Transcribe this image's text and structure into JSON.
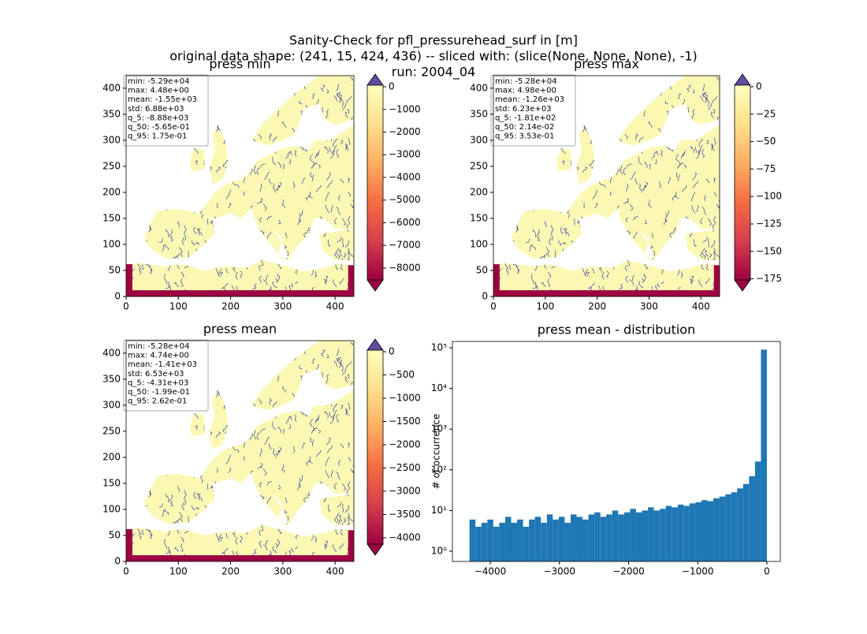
{
  "figure": {
    "title_lines": [
      "Sanity-Check for pfl_pressurehead_surf in [m]",
      "original data shape: (241, 15, 424, 436) -- sliced with: (slice(None, None, None), -1)",
      "run: 2004_04"
    ]
  },
  "chart_data": [
    {
      "type": "heatmap",
      "title": "press min",
      "xlim": [
        0,
        436
      ],
      "ylim": [
        0,
        424
      ],
      "xticks": [
        0,
        100,
        200,
        300,
        400
      ],
      "yticks": [
        0,
        50,
        100,
        150,
        200,
        250,
        300,
        350,
        400
      ],
      "stats": [
        "min: -5.29e+04",
        "max: 4.48e+00",
        "mean: -1.55e+03",
        "std: 6.88e+03",
        "q_5: -8.88e+03",
        "q_50: -5.65e-01",
        "q_95: 1.75e-01"
      ],
      "colorbar": {
        "cmap": "Spectral",
        "clim": [
          -8524,
          70
        ],
        "ticks": [
          0,
          {
            "value": -1000,
            "label": "−1000"
          },
          {
            "value": -2000,
            "label": "−2000"
          },
          {
            "value": -3000,
            "label": "−3000"
          },
          {
            "value": -4000,
            "label": "−4000"
          },
          {
            "value": -5000,
            "label": "−5000"
          },
          {
            "value": -6000,
            "label": "−6000"
          },
          {
            "value": -7000,
            "label": "−7000"
          },
          {
            "value": -8000,
            "label": "−8000"
          }
        ]
      }
    },
    {
      "type": "heatmap",
      "title": "press max",
      "xlim": [
        0,
        436
      ],
      "ylim": [
        0,
        424
      ],
      "xticks": [
        0,
        100,
        200,
        300,
        400
      ],
      "yticks": [
        0,
        50,
        100,
        150,
        200,
        250,
        300,
        350,
        400
      ],
      "stats": [
        "min: -5.28e+04",
        "max: 4.98e+00",
        "mean: -1.26e+03",
        "std: 6.23e+03",
        "q_5: -1.81e+02",
        "q_50: 2.14e-02",
        "q_95: 3.53e-01"
      ],
      "colorbar": {
        "cmap": "Spectral",
        "clim": [
          -176,
          1.4
        ],
        "ticks": [
          0,
          {
            "value": -25,
            "label": "−25"
          },
          {
            "value": -50,
            "label": "−50"
          },
          {
            "value": -75,
            "label": "−75"
          },
          {
            "value": -100,
            "label": "−100"
          },
          {
            "value": -125,
            "label": "−125"
          },
          {
            "value": -150,
            "label": "−150"
          },
          {
            "value": -175,
            "label": "−175"
          }
        ]
      }
    },
    {
      "type": "heatmap",
      "title": "press mean",
      "xlim": [
        0,
        436
      ],
      "ylim": [
        0,
        424
      ],
      "xticks": [
        0,
        100,
        200,
        300,
        400
      ],
      "yticks": [
        0,
        50,
        100,
        150,
        200,
        250,
        300,
        350,
        400
      ],
      "stats": [
        "min: -5.28e+04",
        "max: 4.74e+00",
        "mean: -1.41e+03",
        "std: 6.53e+03",
        "q_5: -4.31e+03",
        "q_50: -1.99e-01",
        "q_95: 2.62e-01"
      ],
      "colorbar": {
        "cmap": "Spectral",
        "clim": [
          -4136,
          34
        ],
        "ticks": [
          0,
          {
            "value": -500,
            "label": "−500"
          },
          {
            "value": -1000,
            "label": "−1000"
          },
          {
            "value": -1500,
            "label": "−1500"
          },
          {
            "value": -2000,
            "label": "−2000"
          },
          {
            "value": -2500,
            "label": "−2500"
          },
          {
            "value": -3000,
            "label": "−3000"
          },
          {
            "value": -3500,
            "label": "−3500"
          },
          {
            "value": -4000,
            "label": "−4000"
          }
        ]
      }
    },
    {
      "type": "histogram",
      "title": "press mean - distribution",
      "ylabel": "# of occurrence",
      "color": "#1f77b4",
      "log_y": true,
      "bins": [
        -4300,
        -4214,
        -4128,
        -4042,
        -3956,
        -3870,
        -3784,
        -3698,
        -3612,
        -3526,
        -3440,
        -3354,
        -3268,
        -3182,
        -3096,
        -3010,
        -2924,
        -2838,
        -2752,
        -2666,
        -2580,
        -2494,
        -2408,
        -2322,
        -2236,
        -2150,
        -2064,
        -1978,
        -1892,
        -1806,
        -1720,
        -1634,
        -1548,
        -1462,
        -1376,
        -1290,
        -1204,
        -1118,
        -1032,
        -946,
        -860,
        -774,
        -688,
        -602,
        -516,
        -430,
        -344,
        -258,
        -172,
        -86,
        0
      ],
      "values": [
        6,
        4,
        5,
        6,
        4,
        5,
        7,
        5,
        6,
        4,
        6,
        7,
        5,
        8,
        6,
        7,
        5,
        8,
        7,
        6,
        8,
        9,
        7,
        8,
        10,
        8,
        9,
        11,
        9,
        10,
        12,
        10,
        11,
        13,
        12,
        14,
        13,
        15,
        16,
        18,
        17,
        20,
        22,
        25,
        28,
        35,
        45,
        70,
        160,
        90000
      ],
      "xlim": [
        -4547,
        194
      ],
      "ylim": [
        0.56,
        143000
      ],
      "xticks": [
        {
          "value": -4000,
          "label": "−4000"
        },
        {
          "value": -3000,
          "label": "−3000"
        },
        {
          "value": -2000,
          "label": "−2000"
        },
        {
          "value": -1000,
          "label": "−1000"
        },
        0
      ],
      "yticks": [
        {
          "value": 1,
          "label": "10⁰"
        },
        {
          "value": 10,
          "label": "10¹"
        },
        {
          "value": 100,
          "label": "10²"
        },
        {
          "value": 1000,
          "label": "10³"
        },
        {
          "value": 10000,
          "label": "10⁴"
        },
        {
          "value": 100000,
          "label": "10⁵"
        }
      ]
    }
  ]
}
